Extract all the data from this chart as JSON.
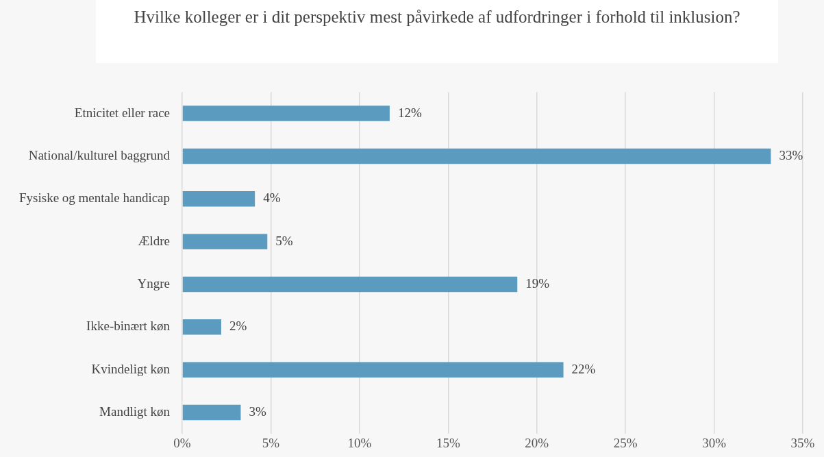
{
  "chart_data": {
    "type": "bar",
    "orientation": "horizontal",
    "title": "Hvilke kolleger er i dit perspektiv mest påvirkede af udfordringer i forhold til inklusion?",
    "categories": [
      "Etnicitet eller race",
      "National/kulturel baggrund",
      "Fysiske og mentale handicap",
      "Ældre",
      "Yngre",
      "Ikke-binært køn",
      "Kvindeligt køn",
      "Mandligt køn"
    ],
    "values": [
      11.7,
      33.2,
      4.1,
      4.8,
      18.9,
      2.2,
      21.5,
      3.3
    ],
    "value_labels": [
      "12%",
      "33%",
      "4%",
      "5%",
      "19%",
      "2%",
      "22%",
      "3%"
    ],
    "color": "#5b9bbf",
    "xlim": [
      0,
      35
    ],
    "xticks": [
      {
        "value": 0,
        "label": "0%"
      },
      {
        "value": 5,
        "label": "5%"
      },
      {
        "value": 10,
        "label": "10%"
      },
      {
        "value": 15,
        "label": "15%"
      },
      {
        "value": 20,
        "label": "20%"
      },
      {
        "value": 25,
        "label": "25%"
      },
      {
        "value": 30,
        "label": "30%"
      },
      {
        "value": 35,
        "label": "35%"
      }
    ],
    "grid": "x"
  }
}
